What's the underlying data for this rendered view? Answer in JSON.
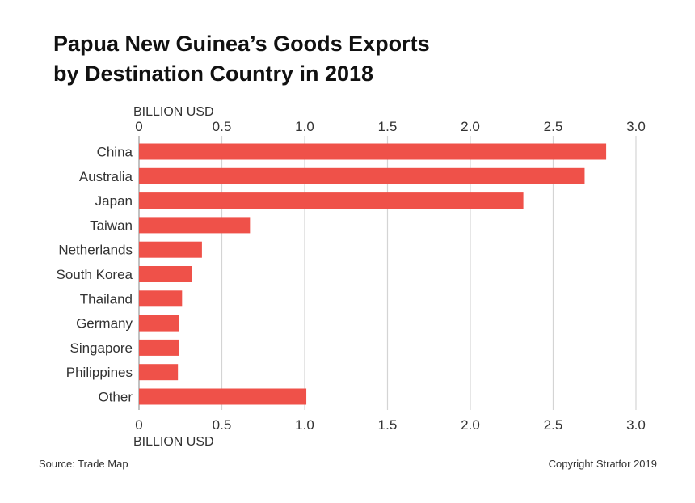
{
  "title_line1": "Papua New Guinea’s Goods Exports",
  "title_line2": "by Destination Country in 2018",
  "source": "Source: Trade Map",
  "copyright": "Copyright Stratfor 2019",
  "bar_color": "#ef5149",
  "chart_data": {
    "type": "bar",
    "orientation": "horizontal",
    "title": "Papua New Guinea’s Goods Exports by Destination Country in 2018",
    "xlabel": "BILLION USD",
    "ylabel": "",
    "xlim": [
      0,
      3.0
    ],
    "ticks": [
      0,
      0.5,
      1.0,
      1.5,
      2.0,
      2.5,
      3.0
    ],
    "tick_labels": [
      "0",
      "0.5",
      "1.0",
      "1.5",
      "2.0",
      "2.5",
      "3.0"
    ],
    "grid": true,
    "categories": [
      "China",
      "Australia",
      "Japan",
      "Taiwan",
      "Netherlands",
      "South Korea",
      "Thailand",
      "Germany",
      "Singapore",
      "Philippines",
      "Other"
    ],
    "values": [
      2.82,
      2.69,
      2.32,
      0.67,
      0.38,
      0.32,
      0.26,
      0.24,
      0.24,
      0.235,
      1.01
    ]
  }
}
